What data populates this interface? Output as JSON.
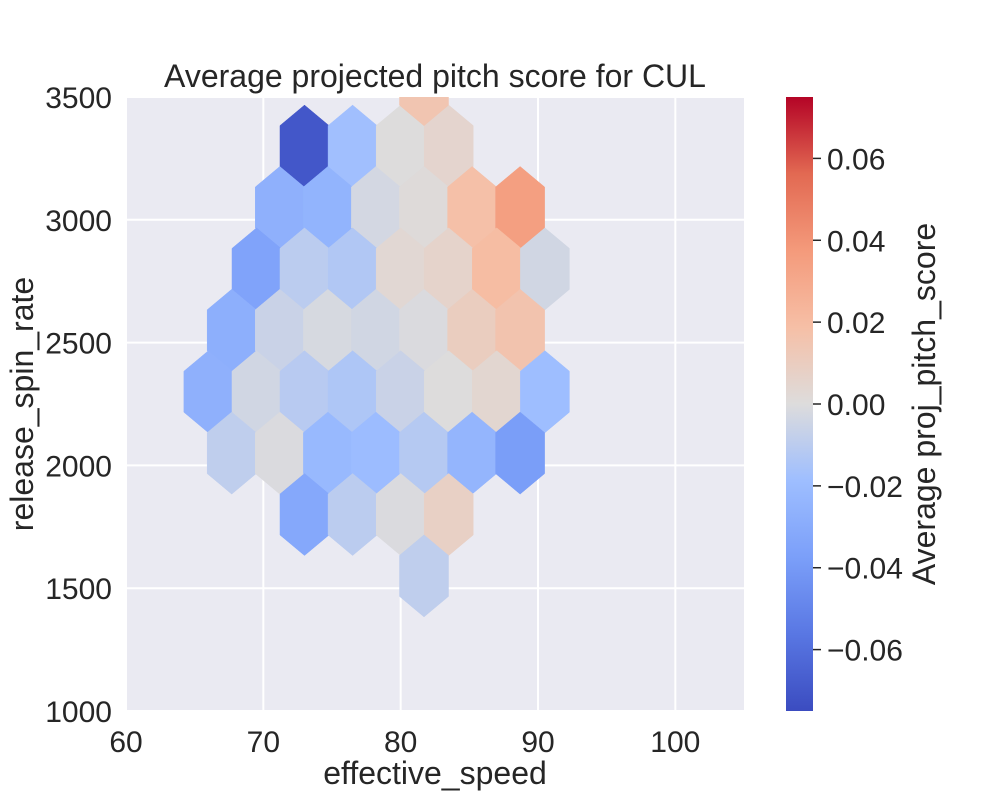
{
  "chart_data": {
    "type": "heatmap",
    "subtype": "hexbin",
    "title": "Average projected pitch score for CUL",
    "xlabel": "effective_speed",
    "ylabel": "release_spin_rate",
    "xlim": [
      60,
      105
    ],
    "ylim": [
      1000,
      3500
    ],
    "xticks": [
      60,
      70,
      80,
      90,
      100
    ],
    "yticks": [
      1000,
      1500,
      2000,
      2500,
      3000,
      3500
    ],
    "grid": true,
    "colormap": "coolwarm",
    "colorbar": {
      "label": "Average proj_pitch_score",
      "range": [
        -0.075,
        0.075
      ],
      "ticks": [
        -0.06,
        -0.04,
        -0.02,
        0.0,
        0.02,
        0.04,
        0.06
      ],
      "tick_labels": [
        "−0.06",
        "−0.04",
        "−0.02",
        "0.00",
        "0.02",
        "0.04",
        "0.06"
      ]
    },
    "hexbins": [
      {
        "x": 73.0,
        "y": 3300,
        "value": -0.07
      },
      {
        "x": 76.5,
        "y": 3300,
        "value": -0.018
      },
      {
        "x": 80.0,
        "y": 3300,
        "value": 0.0
      },
      {
        "x": 83.5,
        "y": 3300,
        "value": 0.005
      },
      {
        "x": 81.7,
        "y": 3550,
        "value": 0.015
      },
      {
        "x": 71.2,
        "y": 3050,
        "value": -0.027
      },
      {
        "x": 74.7,
        "y": 3050,
        "value": -0.025
      },
      {
        "x": 78.2,
        "y": 3050,
        "value": -0.003
      },
      {
        "x": 81.7,
        "y": 3050,
        "value": 0.001
      },
      {
        "x": 85.2,
        "y": 3050,
        "value": 0.018
      },
      {
        "x": 88.7,
        "y": 3050,
        "value": 0.035
      },
      {
        "x": 69.5,
        "y": 2800,
        "value": -0.035
      },
      {
        "x": 73.0,
        "y": 2800,
        "value": -0.01
      },
      {
        "x": 76.5,
        "y": 2800,
        "value": -0.013
      },
      {
        "x": 80.0,
        "y": 2800,
        "value": 0.003
      },
      {
        "x": 83.5,
        "y": 2800,
        "value": 0.006
      },
      {
        "x": 87.0,
        "y": 2800,
        "value": 0.02
      },
      {
        "x": 90.5,
        "y": 2800,
        "value": -0.004
      },
      {
        "x": 67.7,
        "y": 2550,
        "value": -0.028
      },
      {
        "x": 71.2,
        "y": 2550,
        "value": -0.006
      },
      {
        "x": 74.7,
        "y": 2550,
        "value": -0.002
      },
      {
        "x": 78.2,
        "y": 2550,
        "value": -0.004
      },
      {
        "x": 81.7,
        "y": 2550,
        "value": -0.001
      },
      {
        "x": 85.2,
        "y": 2550,
        "value": 0.01
      },
      {
        "x": 88.7,
        "y": 2550,
        "value": 0.016
      },
      {
        "x": 66.0,
        "y": 2300,
        "value": -0.027
      },
      {
        "x": 69.5,
        "y": 2300,
        "value": -0.004
      },
      {
        "x": 73.0,
        "y": 2300,
        "value": -0.011
      },
      {
        "x": 76.5,
        "y": 2300,
        "value": -0.014
      },
      {
        "x": 80.0,
        "y": 2300,
        "value": -0.006
      },
      {
        "x": 83.5,
        "y": 2300,
        "value": 0.0
      },
      {
        "x": 87.0,
        "y": 2300,
        "value": 0.004
      },
      {
        "x": 90.5,
        "y": 2300,
        "value": -0.019
      },
      {
        "x": 67.7,
        "y": 2050,
        "value": -0.009
      },
      {
        "x": 71.2,
        "y": 2050,
        "value": -0.001
      },
      {
        "x": 74.7,
        "y": 2050,
        "value": -0.022
      },
      {
        "x": 78.2,
        "y": 2050,
        "value": -0.02
      },
      {
        "x": 81.7,
        "y": 2050,
        "value": -0.012
      },
      {
        "x": 85.2,
        "y": 2050,
        "value": -0.024
      },
      {
        "x": 88.7,
        "y": 2050,
        "value": -0.038
      },
      {
        "x": 73.0,
        "y": 1800,
        "value": -0.032
      },
      {
        "x": 76.5,
        "y": 1800,
        "value": -0.01
      },
      {
        "x": 80.0,
        "y": 1800,
        "value": -0.001
      },
      {
        "x": 83.5,
        "y": 1800,
        "value": 0.008
      },
      {
        "x": 81.7,
        "y": 1550,
        "value": -0.009
      }
    ]
  }
}
